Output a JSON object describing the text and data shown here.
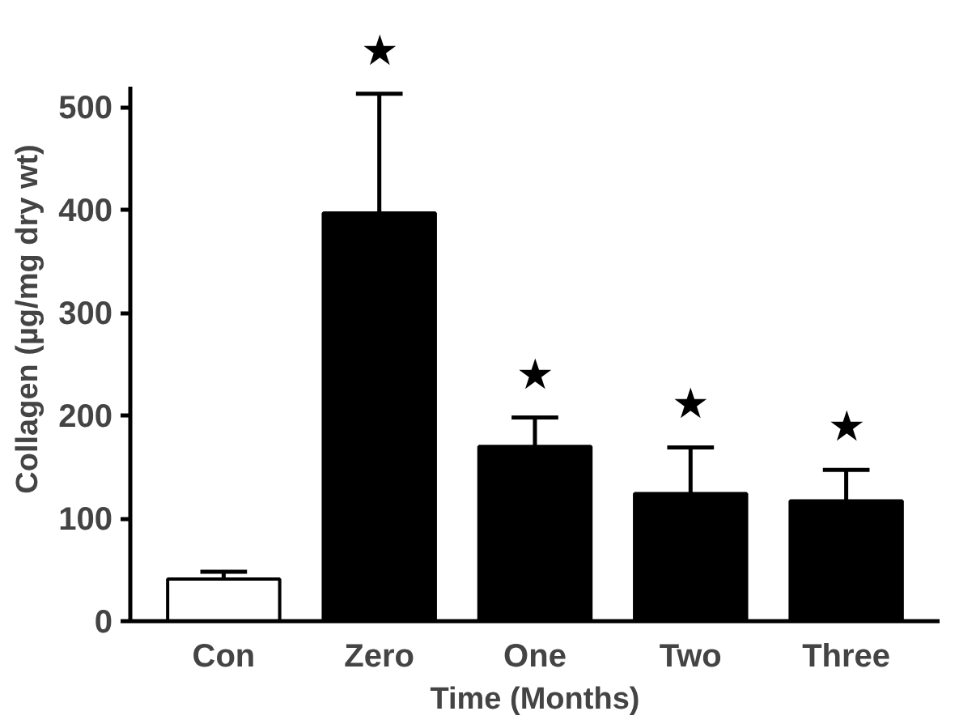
{
  "chart_data": {
    "type": "bar",
    "xlabel": "Time (Months)",
    "ylabel": "Collagen (µg/mg dry wt)",
    "categories": [
      "Con",
      "Zero",
      "One",
      "Two",
      "Three"
    ],
    "values": [
      41,
      397,
      170,
      124,
      117
    ],
    "colors": [
      "#ffffff",
      "#000000",
      "#000000",
      "#000000",
      "#000000"
    ],
    "errors": [
      [
        41,
        48
      ],
      [
        397,
        513
      ],
      [
        170,
        198
      ],
      [
        124,
        169
      ],
      [
        117,
        147
      ]
    ],
    "ylim": [
      0,
      520
    ],
    "yticks": [
      0,
      100,
      200,
      300,
      400,
      500
    ],
    "grid": false,
    "annotations": [
      "★",
      "★",
      "★",
      "★"
    ]
  }
}
